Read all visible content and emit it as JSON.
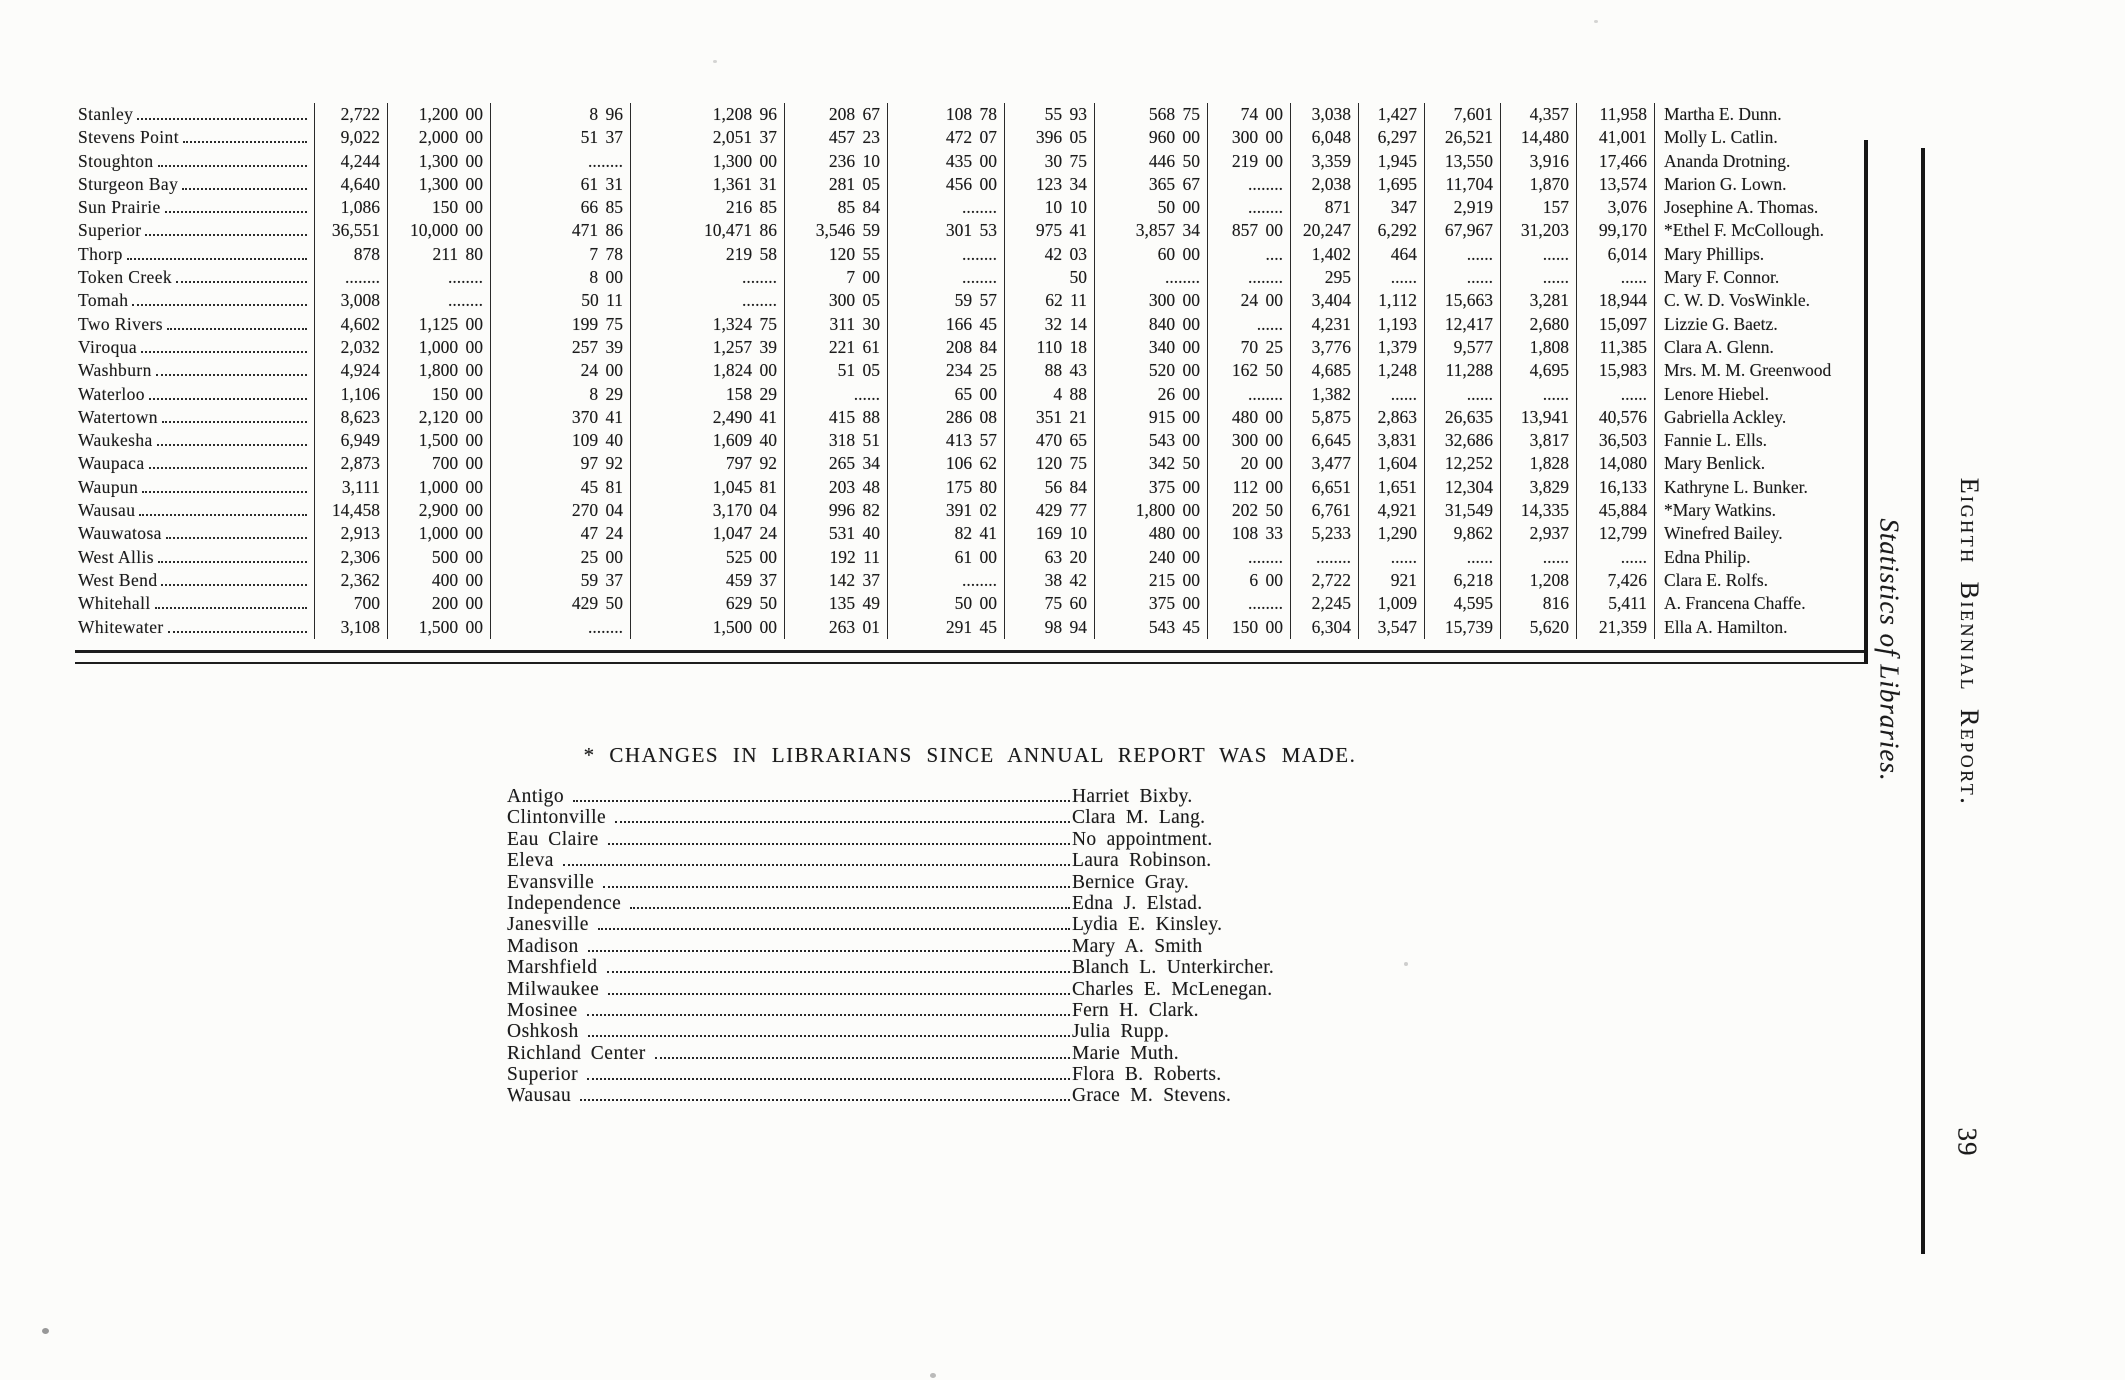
{
  "margin": {
    "statistics_label": "Statistics of Libraries.",
    "report_label": "Eighth Biennial Report.",
    "page_number": "39"
  },
  "table": {
    "rows": [
      {
        "town": "Stanley",
        "values": [
          "2,722",
          "1,200 00",
          "8 96",
          "1,208 96",
          "208 67",
          "108 78",
          "55 93",
          "568 75",
          "74 00",
          "3,038",
          "1,427",
          "7,601",
          "4,357",
          "11,958"
        ],
        "librarian": "Martha E. Dunn."
      },
      {
        "town": "Stevens Point",
        "values": [
          "9,022",
          "2,000 00",
          "51 37",
          "2,051 37",
          "457 23",
          "472 07",
          "396 05",
          "960 00",
          "300 00",
          "6,048",
          "6,297",
          "26,521",
          "14,480",
          "41,001"
        ],
        "librarian": "Molly L. Catlin."
      },
      {
        "town": "Stoughton",
        "values": [
          "4,244",
          "1,300 00",
          "........",
          "1,300 00",
          "236 10",
          "435 00",
          "30 75",
          "446 50",
          "219 00",
          "3,359",
          "1,945",
          "13,550",
          "3,916",
          "17,466"
        ],
        "librarian": "Ananda Drotning."
      },
      {
        "town": "Sturgeon Bay",
        "values": [
          "4,640",
          "1,300 00",
          "61 31",
          "1,361 31",
          "281 05",
          "456 00",
          "123 34",
          "365 67",
          "........",
          "2,038",
          "1,695",
          "11,704",
          "1,870",
          "13,574"
        ],
        "librarian": "Marion G. Lown."
      },
      {
        "town": "Sun Prairie",
        "values": [
          "1,086",
          "150 00",
          "66 85",
          "216 85",
          "85 84",
          "........",
          "10 10",
          "50 00",
          "........",
          "871",
          "347",
          "2,919",
          "157",
          "3,076"
        ],
        "librarian": "Josephine A. Thomas."
      },
      {
        "town": "Superior",
        "values": [
          "36,551",
          "10,000 00",
          "471 86",
          "10,471 86",
          "3,546 59",
          "301 53",
          "975 41",
          "3,857 34",
          "857 00",
          "20,247",
          "6,292",
          "67,967",
          "31,203",
          "99,170"
        ],
        "librarian": "*Ethel F. McCollough."
      },
      {
        "town": "Thorp",
        "values": [
          "878",
          "211 80",
          "7 78",
          "219 58",
          "120 55",
          "........",
          "42 03",
          "60 00",
          "....",
          "1,402",
          "464",
          "......",
          "......",
          "6,014"
        ],
        "librarian": "Mary Phillips."
      },
      {
        "town": "Token Creek",
        "values": [
          "........",
          "........",
          "8 00",
          "........",
          "7 00",
          "........",
          "50",
          "........",
          "........",
          "295",
          "......",
          "......",
          "......",
          "......"
        ],
        "librarian": "Mary F. Connor."
      },
      {
        "town": "Tomah",
        "values": [
          "3,008",
          "........",
          "50 11",
          "........",
          "300 05",
          "59 57",
          "62 11",
          "300 00",
          "24 00",
          "3,404",
          "1,112",
          "15,663",
          "3,281",
          "18,944"
        ],
        "librarian": "C. W. D. VosWinkle."
      },
      {
        "town": "Two Rivers",
        "values": [
          "4,602",
          "1,125 00",
          "199 75",
          "1,324 75",
          "311 30",
          "166 45",
          "32 14",
          "840 00",
          "......",
          "4,231",
          "1,193",
          "12,417",
          "2,680",
          "15,097"
        ],
        "librarian": "Lizzie G. Baetz."
      },
      {
        "town": "Viroqua",
        "values": [
          "2,032",
          "1,000 00",
          "257 39",
          "1,257 39",
          "221 61",
          "208 84",
          "110 18",
          "340 00",
          "70 25",
          "3,776",
          "1,379",
          "9,577",
          "1,808",
          "11,385"
        ],
        "librarian": "Clara A. Glenn."
      },
      {
        "town": "Washburn",
        "values": [
          "4,924",
          "1,800 00",
          "24 00",
          "1,824 00",
          "51 05",
          "234 25",
          "88 43",
          "520 00",
          "162 50",
          "4,685",
          "1,248",
          "11,288",
          "4,695",
          "15,983"
        ],
        "librarian": "Mrs. M. M. Greenwood"
      },
      {
        "town": "Waterloo",
        "values": [
          "1,106",
          "150 00",
          "8 29",
          "158 29",
          "......",
          "65 00",
          "4 88",
          "26 00",
          "........",
          "1,382",
          "......",
          "......",
          "......",
          "......"
        ],
        "librarian": "Lenore Hiebel."
      },
      {
        "town": "Watertown",
        "values": [
          "8,623",
          "2,120 00",
          "370 41",
          "2,490 41",
          "415 88",
          "286 08",
          "351 21",
          "915 00",
          "480 00",
          "5,875",
          "2,863",
          "26,635",
          "13,941",
          "40,576"
        ],
        "librarian": "Gabriella Ackley."
      },
      {
        "town": "Waukesha",
        "values": [
          "6,949",
          "1,500 00",
          "109 40",
          "1,609 40",
          "318 51",
          "413 57",
          "470 65",
          "543 00",
          "300 00",
          "6,645",
          "3,831",
          "32,686",
          "3,817",
          "36,503"
        ],
        "librarian": "Fannie L. Ells."
      },
      {
        "town": "Waupaca",
        "values": [
          "2,873",
          "700 00",
          "97 92",
          "797 92",
          "265 34",
          "106 62",
          "120 75",
          "342 50",
          "20 00",
          "3,477",
          "1,604",
          "12,252",
          "1,828",
          "14,080"
        ],
        "librarian": "Mary Benlick."
      },
      {
        "town": "Waupun",
        "values": [
          "3,111",
          "1,000 00",
          "45 81",
          "1,045 81",
          "203 48",
          "175 80",
          "56 84",
          "375 00",
          "112 00",
          "6,651",
          "1,651",
          "12,304",
          "3,829",
          "16,133"
        ],
        "librarian": "Kathryne L. Bunker."
      },
      {
        "town": "Wausau",
        "values": [
          "14,458",
          "2,900 00",
          "270 04",
          "3,170 04",
          "996 82",
          "391 02",
          "429 77",
          "1,800 00",
          "202 50",
          "6,761",
          "4,921",
          "31,549",
          "14,335",
          "45,884"
        ],
        "librarian": "*Mary Watkins."
      },
      {
        "town": "Wauwatosa",
        "values": [
          "2,913",
          "1,000 00",
          "47 24",
          "1,047 24",
          "531 40",
          "82 41",
          "169 10",
          "480 00",
          "108 33",
          "5,233",
          "1,290",
          "9,862",
          "2,937",
          "12,799"
        ],
        "librarian": "Winefred Bailey."
      },
      {
        "town": "West Allis",
        "values": [
          "2,306",
          "500 00",
          "25 00",
          "525 00",
          "192 11",
          "61 00",
          "63 20",
          "240 00",
          "........",
          "........",
          "......",
          "......",
          "......",
          "......"
        ],
        "librarian": "Edna Philip."
      },
      {
        "town": "West Bend",
        "values": [
          "2,362",
          "400 00",
          "59 37",
          "459 37",
          "142 37",
          "........",
          "38 42",
          "215 00",
          "6 00",
          "2,722",
          "921",
          "6,218",
          "1,208",
          "7,426"
        ],
        "librarian": "Clara E. Rolfs."
      },
      {
        "town": "Whitehall",
        "values": [
          "700",
          "200 00",
          "429 50",
          "629 50",
          "135 49",
          "50 00",
          "75 60",
          "375 00",
          "........",
          "2,245",
          "1,009",
          "4,595",
          "816",
          "5,411"
        ],
        "librarian": "A. Francena Chaffe."
      },
      {
        "town": "Whitewater",
        "values": [
          "3,108",
          "1,500 00",
          "........",
          "1,500 00",
          "263 01",
          "291 45",
          "98 94",
          "543 45",
          "150 00",
          "6,304",
          "3,547",
          "15,739",
          "5,620",
          "21,359"
        ],
        "librarian": "Ella A. Hamilton."
      }
    ]
  },
  "changes": {
    "heading": "* CHANGES IN LIBRARIANS SINCE ANNUAL REPORT WAS MADE.",
    "entries": [
      {
        "town": "Antigo",
        "librarian": "Harriet Bixby."
      },
      {
        "town": "Clintonville",
        "librarian": "Clara M. Lang."
      },
      {
        "town": "Eau Claire",
        "librarian": "No appointment."
      },
      {
        "town": "Eleva",
        "librarian": "Laura Robinson."
      },
      {
        "town": "Evansville",
        "librarian": "Bernice Gray."
      },
      {
        "town": "Independence",
        "librarian": "Edna J. Elstad."
      },
      {
        "town": "Janesville",
        "librarian": "Lydia E. Kinsley."
      },
      {
        "town": "Madison",
        "librarian": "Mary A. Smith"
      },
      {
        "town": "Marshfield",
        "librarian": "Blanch L. Unterkircher."
      },
      {
        "town": "Milwaukee",
        "librarian": "Charles E. McLenegan."
      },
      {
        "town": "Mosinee",
        "librarian": "Fern H. Clark."
      },
      {
        "town": "Oshkosh",
        "librarian": "Julia Rupp."
      },
      {
        "town": "Richland Center",
        "librarian": "Marie Muth."
      },
      {
        "town": "Superior",
        "librarian": "Flora B. Roberts."
      },
      {
        "town": "Wausau",
        "librarian": "Grace M. Stevens."
      }
    ]
  }
}
